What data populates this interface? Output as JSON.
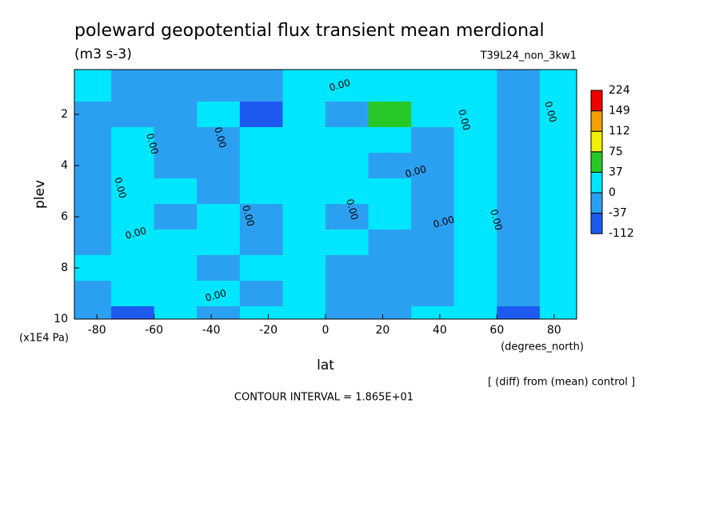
{
  "chart_data": {
    "type": "contour",
    "title": "poleward geopotential flux transient mean merdional",
    "subtitle": "(m3 s-3)",
    "run_label": "T39L24_non_3kw1",
    "x_label": "lat",
    "x_unit": "(degrees_north)",
    "y_label": "plev",
    "y_unit": "(x1E4 Pa)",
    "note": "[ (diff) from (mean) control ]",
    "contour_interval": "CONTOUR INTERVAL = 1.865E+01",
    "contour_label": "0.00",
    "x": [
      -82.5,
      -67.5,
      -52.5,
      -37.5,
      -22.5,
      -7.5,
      7.5,
      22.5,
      37.5,
      52.5,
      67.5,
      82.5
    ],
    "y": [
      1,
      2,
      3,
      4,
      5,
      6,
      7,
      8,
      9,
      10
    ],
    "z": [
      [
        8,
        -10,
        -12,
        -8,
        -20,
        5,
        10,
        8,
        6,
        10,
        -5,
        20
      ],
      [
        -10,
        -15,
        -8,
        5,
        -45,
        8,
        -8,
        40,
        10,
        8,
        -10,
        5
      ],
      [
        -12,
        5,
        -10,
        -5,
        10,
        12,
        8,
        10,
        -5,
        10,
        -15,
        8
      ],
      [
        -15,
        8,
        -12,
        -8,
        6,
        10,
        5,
        -8,
        -10,
        12,
        -12,
        6
      ],
      [
        -10,
        10,
        5,
        -10,
        8,
        6,
        5,
        3,
        -12,
        10,
        -8,
        10
      ],
      [
        -8,
        12,
        -5,
        8,
        -10,
        10,
        -5,
        5,
        -8,
        6,
        -10,
        8
      ],
      [
        -5,
        6,
        10,
        5,
        -12,
        8,
        5,
        -10,
        -12,
        5,
        -12,
        10
      ],
      [
        8,
        5,
        12,
        -8,
        10,
        5,
        -10,
        -8,
        -10,
        8,
        -15,
        5
      ],
      [
        -10,
        10,
        8,
        6,
        -6,
        8,
        -12,
        -10,
        -8,
        10,
        -20,
        12
      ],
      [
        -12,
        -40,
        5,
        -8,
        8,
        5,
        -10,
        -8,
        5,
        6,
        -45,
        8
      ]
    ],
    "xlim": [
      -87.9,
      87.9
    ],
    "ylim": [
      10,
      0.25
    ],
    "xticks": [
      -80,
      -60,
      -40,
      -20,
      0,
      20,
      40,
      60,
      80
    ],
    "yticks": [
      2,
      4,
      6,
      8,
      10
    ],
    "levels": [
      -112,
      -37,
      0,
      37,
      75,
      112,
      149,
      224
    ],
    "colors": [
      "#1e5af0",
      "#2ca0f0",
      "#00e6ff",
      "#28c828",
      "#f0f000",
      "#f0a000",
      "#f00000"
    ]
  }
}
